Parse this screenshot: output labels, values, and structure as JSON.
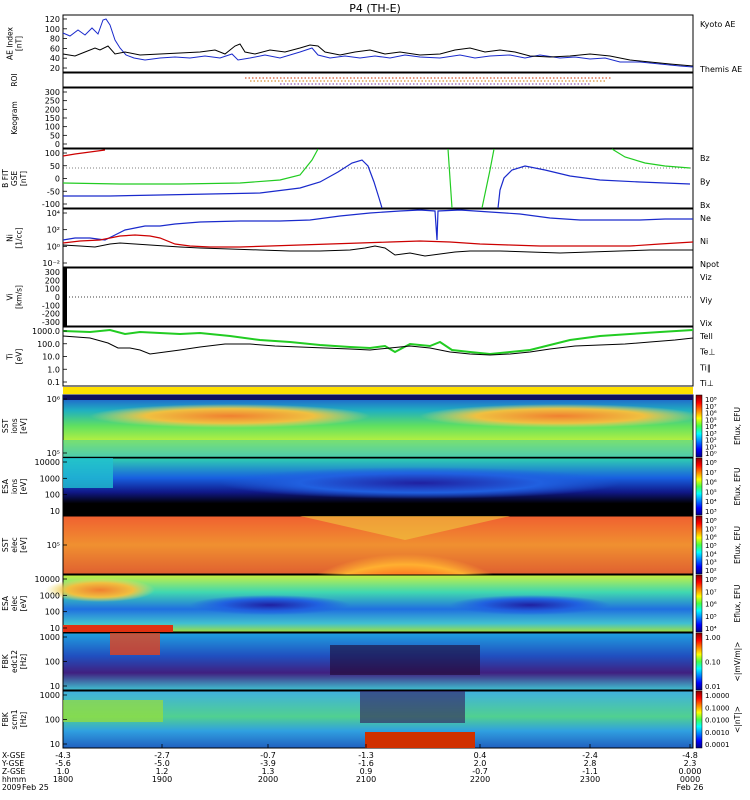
{
  "title": "P4 (TH-E)",
  "colors": {
    "frame": "#000000",
    "kyoto": "#1a2acc",
    "themis": "#000000",
    "red": "#cc0000",
    "green": "#22cc22",
    "blue": "#1a2acc"
  },
  "panels": [
    {
      "id": "ae",
      "ylabel": [
        "AE Index",
        "[nT]"
      ],
      "ticks": [
        "120",
        "100",
        "80",
        "60",
        "40",
        "20"
      ],
      "legend": [
        {
          "text": "Kyoto AE",
          "color": "#1a2acc"
        },
        {
          "text": "Themis AE",
          "color": "#000000"
        }
      ]
    },
    {
      "id": "roi",
      "ylabel": [
        "ROI"
      ],
      "ticks": [],
      "legend": []
    },
    {
      "id": "keogram",
      "ylabel": [
        "Keogram"
      ],
      "ticks": [
        "300",
        "250",
        "200",
        "150",
        "100",
        "50",
        "0"
      ],
      "legend": []
    },
    {
      "id": "bfit",
      "ylabel": [
        "B FIT",
        "GSE",
        "[nT]"
      ],
      "ticks": [
        "100",
        "50",
        "0",
        "-50",
        "-100"
      ],
      "legend": [
        {
          "text": "Bz",
          "color": "#cc0000"
        },
        {
          "text": "By",
          "color": "#22cc22"
        },
        {
          "text": "Bx",
          "color": "#1a2acc"
        }
      ]
    },
    {
      "id": "density",
      "ylabel": [
        "Ni",
        "[1/cc]"
      ],
      "ticks": [
        "10⁴",
        "10²",
        "10⁰",
        "10⁻²"
      ],
      "legend": [
        {
          "text": "Ne",
          "color": "#cc0000"
        },
        {
          "text": "Ni",
          "color": "#000000"
        },
        {
          "text": "Npot",
          "color": "#1a2acc"
        }
      ]
    },
    {
      "id": "velocity",
      "ylabel": [
        "Vi",
        "[km/s]"
      ],
      "ticks": [
        "300",
        "200",
        "100",
        "0",
        "-100",
        "-200",
        "-300"
      ],
      "legend": [
        {
          "text": "Viz",
          "color": "#cc0000"
        },
        {
          "text": "Viy",
          "color": "#22cc22"
        },
        {
          "text": "Vix",
          "color": "#1a2acc"
        }
      ]
    },
    {
      "id": "temperature",
      "ylabel": [
        "Ti",
        "[eV]"
      ],
      "ticks": [
        "1000.0",
        "100.0",
        "10.0",
        "1.0",
        "0.1"
      ],
      "legend": [
        {
          "text": "Tell",
          "color": "#000000"
        },
        {
          "text": "Te⊥",
          "color": "#cc0000"
        },
        {
          "text": "Ti‖",
          "color": "#22cc22"
        },
        {
          "text": "Ti⊥",
          "color": "#1a2acc"
        }
      ]
    },
    {
      "id": "sst_ion",
      "ylabel": [
        "SST",
        "ions",
        "[eV]"
      ],
      "ticks": [
        "10⁶",
        "10⁵"
      ],
      "cbar": {
        "ticks": [
          "10⁸",
          "10⁷",
          "10⁶",
          "10⁵",
          "10⁴",
          "10³",
          "10²",
          "10¹",
          "10⁰"
        ],
        "label": "Eflux, EFU"
      }
    },
    {
      "id": "esa_ion",
      "ylabel": [
        "ESA",
        "ions",
        "[eV]"
      ],
      "ticks": [
        "10000",
        "1000",
        "100",
        "10"
      ],
      "cbar": {
        "ticks": [
          "10⁸",
          "10⁷",
          "10⁶",
          "10⁵",
          "10⁴",
          "10³"
        ],
        "label": "Eflux, EFU"
      }
    },
    {
      "id": "sst_elec",
      "ylabel": [
        "SST",
        "elec",
        "[eV]"
      ],
      "ticks": [
        "10⁵"
      ],
      "cbar": {
        "ticks": [
          "10⁸",
          "10⁷",
          "10⁶",
          "10⁵",
          "10⁴",
          "10³",
          "10²"
        ],
        "label": "Eflux, EFU"
      }
    },
    {
      "id": "esa_elec",
      "ylabel": [
        "ESA",
        "elec",
        "[eV]"
      ],
      "ticks": [
        "10000",
        "1000",
        "100",
        "10"
      ],
      "cbar": {
        "ticks": [
          "10⁸",
          "10⁷",
          "10⁶",
          "10⁵",
          "10⁴"
        ],
        "label": "Eflux, EFU"
      }
    },
    {
      "id": "fbk_edc",
      "ylabel": [
        "FBK",
        "edc12",
        "[Hz]"
      ],
      "ticks": [
        "1000",
        "100",
        "10"
      ],
      "cbar": {
        "ticks": [
          "1.00",
          "0.10",
          "0.01"
        ],
        "label": "<|mV/m|>"
      }
    },
    {
      "id": "fbk_scm",
      "ylabel": [
        "FBK",
        "scm1",
        "[Hz]"
      ],
      "ticks": [
        "1000",
        "100",
        "10"
      ],
      "cbar": {
        "ticks": [
          "1.0000",
          "0.1000",
          "0.0100",
          "0.0010",
          "0.0001"
        ],
        "label": "<|nT|>"
      }
    }
  ],
  "xaxis": {
    "row_labels": [
      "X-GSE",
      "Y-GSE",
      "Z-GSE",
      "hhmm",
      "2009"
    ],
    "date_left": "Feb 25",
    "date_right": "Feb 26",
    "columns": [
      {
        "x": "-4.3",
        "y": "-5.6",
        "z": "1.0",
        "t": "1800"
      },
      {
        "x": "-2.7",
        "y": "-5.0",
        "z": "1.2",
        "t": "1900"
      },
      {
        "x": "-0.7",
        "y": "-3.9",
        "z": "1.3",
        "t": "2000"
      },
      {
        "x": "-1.3",
        "y": "-1.6",
        "z": "0.9",
        "t": "2100"
      },
      {
        "x": "0.4",
        "y": "2.0",
        "z": "-0.7",
        "t": "2200"
      },
      {
        "x": "-2.4",
        "y": "2.8",
        "z": "-1.1",
        "t": "2300"
      },
      {
        "x": "-4.8",
        "y": "2.3",
        "z": "0.000",
        "t": "0000"
      }
    ]
  },
  "chart_data": [
    {
      "type": "line",
      "panel": "AE Index",
      "x": [
        0.0,
        0.5,
        0.6,
        0.9,
        1.0,
        1.5,
        2.0,
        2.3,
        2.5,
        3.0,
        3.1,
        3.5,
        4.0,
        4.5,
        5.0,
        5.5,
        6.0
      ],
      "series": [
        {
          "name": "Kyoto AE",
          "values": [
            80,
            70,
            105,
            40,
            35,
            32,
            30,
            28,
            30,
            30,
            25,
            30,
            35,
            28,
            30,
            25,
            20
          ]
        },
        {
          "name": "Themis AE",
          "values": [
            35,
            30,
            45,
            30,
            32,
            40,
            45,
            40,
            52,
            35,
            28,
            30,
            38,
            40,
            35,
            25,
            20
          ]
        }
      ],
      "x_unit": "hours after 18:00",
      "ylim": [
        0,
        130
      ]
    },
    {
      "type": "line",
      "panel": "B FIT GSE",
      "series": [
        {
          "name": "Bz",
          "values": [
            80,
            100,
            100
          ]
        },
        {
          "name": "By",
          "values": [
            -35,
            -30,
            60
          ]
        },
        {
          "name": "Bx",
          "values": [
            -35,
            60,
            -100
          ]
        }
      ],
      "ylim": [
        -100,
        100
      ]
    },
    {
      "type": "line",
      "panel": "Ti",
      "series": [
        {
          "name": "Tell",
          "values": [
            1000,
            100,
            300,
            400,
            200,
            100,
            300,
            900
          ]
        },
        {
          "name": "Ti‖",
          "values": [
            1200,
            1500,
            1200,
            800,
            300,
            50,
            200,
            1200
          ]
        }
      ],
      "ylim": [
        0.1,
        5000
      ],
      "log": true
    }
  ]
}
